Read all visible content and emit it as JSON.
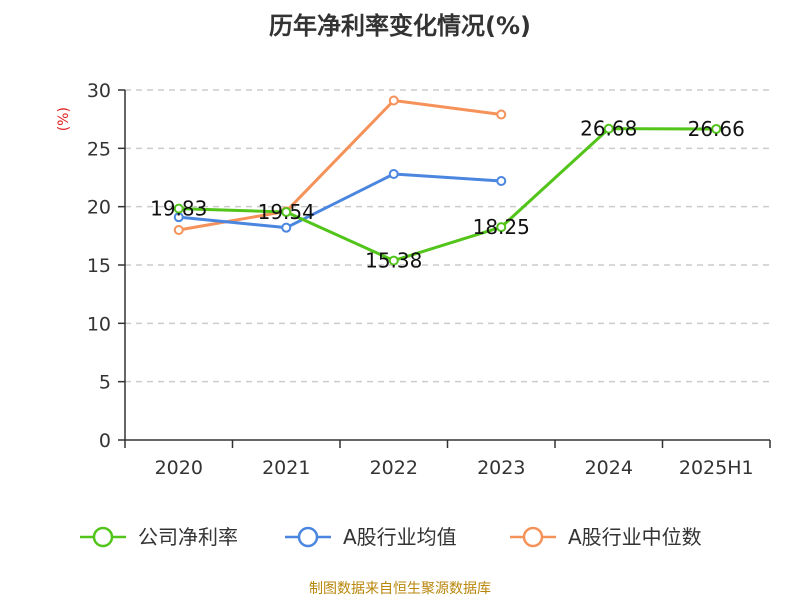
{
  "chart_data": {
    "type": "line",
    "title": "历年净利率变化情况(%)",
    "ylabel": "(%)",
    "xlabel": "",
    "categories": [
      "2020",
      "2021",
      "2022",
      "2023",
      "2024",
      "2025H1"
    ],
    "ylim": [
      0,
      30
    ],
    "yticks": [
      0,
      5,
      10,
      15,
      20,
      25,
      30
    ],
    "grid": "horizontal-dashed",
    "legend_position": "bottom",
    "series": [
      {
        "name": "公司净利率",
        "color": "#52c41a",
        "values": [
          19.83,
          19.54,
          15.38,
          18.25,
          26.68,
          26.66
        ],
        "labels": [
          "19.83",
          "19.54",
          "15.38",
          "18.25",
          "26.68",
          "26.66"
        ]
      },
      {
        "name": "A股行业均值",
        "color": "#4a86e0",
        "values": [
          19.1,
          18.2,
          22.8,
          22.2,
          null,
          null
        ]
      },
      {
        "name": "A股行业中位数",
        "color": "#f5925a",
        "values": [
          18.0,
          19.6,
          29.1,
          27.9,
          null,
          null
        ]
      }
    ]
  },
  "footer": "制图数据来自恒生聚源数据库"
}
